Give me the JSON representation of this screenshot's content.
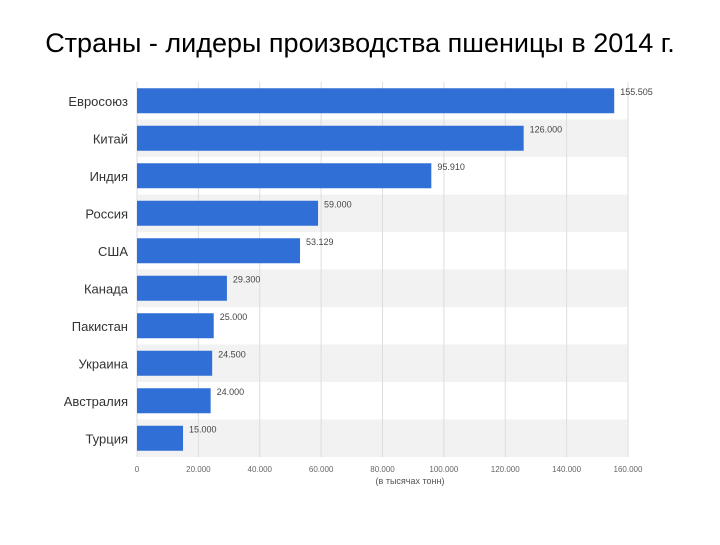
{
  "slide": {
    "title": "Страны - лидеры производства пшеницы в 2014 г."
  },
  "chart_data": {
    "type": "bar",
    "orientation": "horizontal",
    "categories": [
      "Евросоюз",
      "Китай",
      "Индия",
      "Россия",
      "США",
      "Канада",
      "Пакистан",
      "Украина",
      "Австралия",
      "Турция"
    ],
    "values": [
      155505,
      126000,
      95910,
      59000,
      53129,
      29300,
      25000,
      24500,
      24000,
      15000
    ],
    "value_labels": [
      "155.505",
      "126.000",
      "95.910",
      "59.000",
      "53.129",
      "29.300",
      "25.000",
      "24.500",
      "24.000",
      "15.000"
    ],
    "x_ticks": [
      0,
      20000,
      40000,
      60000,
      80000,
      100000,
      120000,
      140000,
      160000
    ],
    "x_tick_labels": [
      "0",
      "20.000",
      "40.000",
      "60.000",
      "80.000",
      "100.000",
      "120.000",
      "140.000",
      "160.000"
    ],
    "xlim": [
      0,
      160000
    ],
    "xlabel": "(в тысячах тонн)",
    "ylabel": "",
    "grid": "vertical",
    "bar_color": "#2f6fd6",
    "alt_row_color": "#f2f2f2"
  }
}
